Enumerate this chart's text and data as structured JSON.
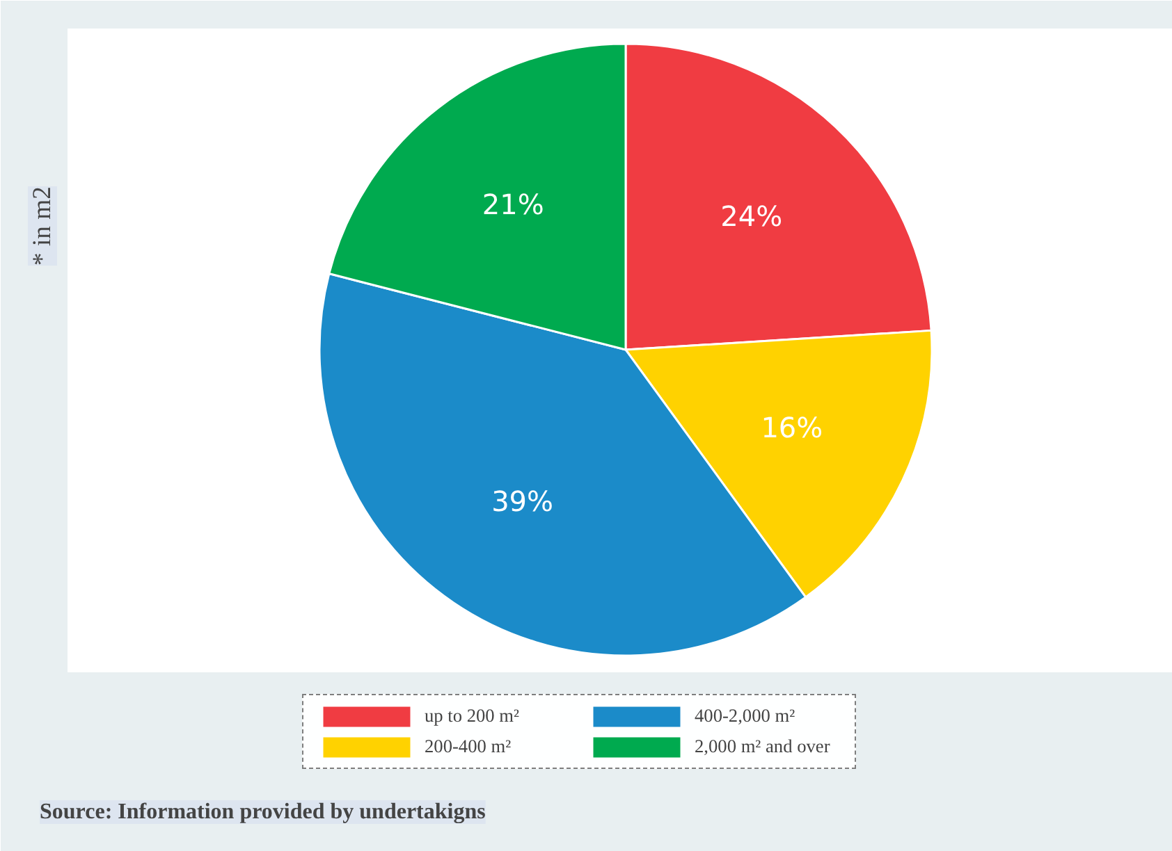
{
  "chart_data": {
    "type": "pie",
    "categories": [
      "up to 200 m²",
      "200-400 m²",
      "400-2,000 m²",
      "2,000 m² and over"
    ],
    "values": [
      24,
      16,
      39,
      21
    ],
    "colors": [
      "#f03c42",
      "#ffd200",
      "#1b8bc9",
      "#00aa4f"
    ],
    "value_labels": [
      "24%",
      "16%",
      "39%",
      "21%"
    ],
    "legend": "bottom",
    "annotations": [
      "* in m2",
      "Source: Information provided by undertakigns"
    ]
  }
}
